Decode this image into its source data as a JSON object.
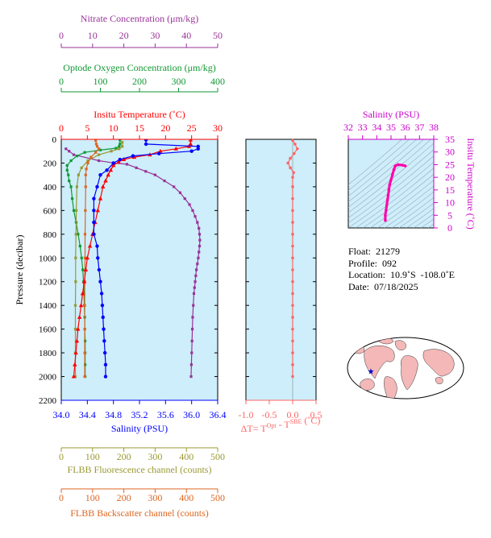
{
  "chart_data": [
    {
      "type": "line",
      "axes": {
        "pressure": {
          "label": "Pressure (decibar)",
          "range": [
            0,
            2200
          ],
          "ticks": [
            0,
            200,
            400,
            600,
            800,
            1000,
            1200,
            1400,
            1600,
            1800,
            2000,
            2200
          ],
          "reversed": true
        },
        "nitrate": {
          "label": "Nitrate Concentration (μm/kg)",
          "range": [
            0,
            50
          ],
          "ticks": [
            0,
            10,
            20,
            30,
            40,
            50
          ],
          "color": "#993399"
        },
        "oxygen": {
          "label": "Optode Oxygen Concentration (μm/kg)",
          "range": [
            0,
            400
          ],
          "ticks": [
            0,
            100,
            200,
            300,
            400
          ],
          "color": "#119933"
        },
        "temperature": {
          "label": "Insitu Temperature (˚C)",
          "range": [
            0,
            30
          ],
          "ticks": [
            0,
            5,
            10,
            15,
            20,
            25,
            30
          ],
          "color": "#ff0000"
        },
        "salinity": {
          "label": "Salinity (PSU)",
          "range": [
            34.0,
            36.4
          ],
          "ticks": [
            "34.0",
            "34.4",
            "34.8",
            "35.2",
            "35.6",
            "36.0",
            "36.4"
          ],
          "color": "#0000ff"
        },
        "fluorescence": {
          "label": "FLBB Fluorescence channel (counts)",
          "range": [
            0,
            500
          ],
          "ticks": [
            0,
            100,
            200,
            300,
            400,
            500
          ],
          "color": "#999933"
        },
        "backscatter": {
          "label": "FLBB Backscatter channel (counts)",
          "range": [
            0,
            500
          ],
          "ticks": [
            0,
            100,
            200,
            300,
            400,
            500
          ],
          "color": "#dd6622"
        }
      },
      "series": [
        {
          "variable": "nitrate",
          "color": "#993399",
          "points": [
            [
              1.5,
              80
            ],
            [
              2.5,
              100
            ],
            [
              4,
              130
            ],
            [
              12,
              180
            ],
            [
              17,
              200
            ],
            [
              21,
              210
            ],
            [
              24,
              240
            ],
            [
              27,
              270
            ],
            [
              30,
              300
            ],
            [
              33,
              350
            ],
            [
              36,
              400
            ],
            [
              38,
              450
            ],
            [
              39.5,
              500
            ],
            [
              41,
              550
            ],
            [
              42,
              600
            ],
            [
              42.8,
              650
            ],
            [
              43.5,
              700
            ],
            [
              44,
              750
            ],
            [
              44.2,
              800
            ],
            [
              44.3,
              850
            ],
            [
              44.2,
              900
            ],
            [
              44,
              950
            ],
            [
              43.8,
              1000
            ],
            [
              43.5,
              1050
            ],
            [
              43.2,
              1100
            ],
            [
              43,
              1150
            ],
            [
              42.8,
              1200
            ],
            [
              42.6,
              1250
            ],
            [
              42.4,
              1300
            ],
            [
              42.2,
              1400
            ],
            [
              42,
              1500
            ],
            [
              41.9,
              1600
            ],
            [
              41.8,
              1700
            ],
            [
              41.7,
              1800
            ],
            [
              41.6,
              1900
            ],
            [
              41.5,
              2000
            ]
          ]
        },
        {
          "variable": "oxygen",
          "color": "#119933",
          "points": [
            [
              150,
              5
            ],
            [
              150,
              40
            ],
            [
              148,
              60
            ],
            [
              140,
              75
            ],
            [
              100,
              90
            ],
            [
              60,
              110
            ],
            [
              40,
              140
            ],
            [
              25,
              180
            ],
            [
              15,
              220
            ],
            [
              15,
              260
            ],
            [
              18,
              300
            ],
            [
              20,
              350
            ],
            [
              25,
              400
            ],
            [
              28,
              500
            ],
            [
              32,
              600
            ],
            [
              38,
              700
            ],
            [
              43,
              800
            ],
            [
              48,
              900
            ],
            [
              52,
              1000
            ],
            [
              55,
              1100
            ],
            [
              57,
              1200
            ],
            [
              58,
              1300
            ],
            [
              59,
              1400
            ],
            [
              60,
              1500
            ],
            [
              60,
              1600
            ],
            [
              61,
              1700
            ],
            [
              61,
              1800
            ],
            [
              61,
              1900
            ],
            [
              61,
              2000
            ]
          ]
        },
        {
          "variable": "fluorescence",
          "color": "#999933",
          "points": [
            [
              195,
              25
            ],
            [
              195,
              60
            ],
            [
              185,
              80
            ],
            [
              160,
              100
            ],
            [
              120,
              130
            ],
            [
              85,
              180
            ],
            [
              65,
              240
            ],
            [
              55,
              300
            ],
            [
              50,
              400
            ],
            [
              48,
              600
            ],
            [
              47,
              800
            ],
            [
              46,
              1000
            ],
            [
              46,
              1200
            ],
            [
              45,
              1400
            ],
            [
              45,
              1600
            ],
            [
              45,
              1800
            ],
            [
              45,
              2000
            ]
          ]
        },
        {
          "variable": "backscatter",
          "color": "#dd6622",
          "points": [
            [
              110,
              10
            ],
            [
              112,
              40
            ],
            [
              115,
              60
            ],
            [
              120,
              80
            ],
            [
              110,
              110
            ],
            [
              95,
              150
            ],
            [
              85,
              200
            ],
            [
              80,
              250
            ],
            [
              78,
              300
            ],
            [
              78,
              400
            ],
            [
              77,
              600
            ],
            [
              76,
              800
            ],
            [
              76,
              1000
            ],
            [
              75,
              1200
            ],
            [
              75,
              1400
            ],
            [
              75,
              1600
            ],
            [
              75,
              1800
            ],
            [
              75,
              2000
            ]
          ]
        },
        {
          "variable": "temperature",
          "color": "#ff0000",
          "points": [
            [
              24.8,
              5
            ],
            [
              24.8,
              40
            ],
            [
              24.5,
              60
            ],
            [
              22,
              80
            ],
            [
              19,
              100
            ],
            [
              17,
              130
            ],
            [
              14,
              150
            ],
            [
              12,
              170
            ],
            [
              11,
              190
            ],
            [
              10,
              220
            ],
            [
              9.5,
              260
            ],
            [
              9,
              300
            ],
            [
              8.5,
              350
            ],
            [
              8,
              400
            ],
            [
              7.5,
              500
            ],
            [
              7,
              600
            ],
            [
              6.5,
              700
            ],
            [
              6,
              800
            ],
            [
              5.5,
              900
            ],
            [
              5,
              1000
            ],
            [
              4.7,
              1100
            ],
            [
              4.4,
              1200
            ],
            [
              4.1,
              1300
            ],
            [
              3.8,
              1400
            ],
            [
              3.5,
              1500
            ],
            [
              3.2,
              1600
            ],
            [
              3,
              1700
            ],
            [
              2.8,
              1800
            ],
            [
              2.6,
              1900
            ],
            [
              2.4,
              2000
            ]
          ]
        },
        {
          "variable": "salinity",
          "color": "#0000ff",
          "points": [
            [
              35.3,
              5
            ],
            [
              35.3,
              40
            ],
            [
              36.1,
              60
            ],
            [
              36.1,
              80
            ],
            [
              36.0,
              100
            ],
            [
              35.5,
              120
            ],
            [
              35.1,
              140
            ],
            [
              34.9,
              170
            ],
            [
              34.8,
              200
            ],
            [
              34.7,
              260
            ],
            [
              34.6,
              300
            ],
            [
              34.55,
              400
            ],
            [
              34.5,
              500
            ],
            [
              34.5,
              600
            ],
            [
              34.5,
              700
            ],
            [
              34.5,
              800
            ],
            [
              34.55,
              900
            ],
            [
              34.56,
              1000
            ],
            [
              34.58,
              1100
            ],
            [
              34.6,
              1200
            ],
            [
              34.62,
              1300
            ],
            [
              34.63,
              1400
            ],
            [
              34.64,
              1500
            ],
            [
              34.65,
              1600
            ],
            [
              34.66,
              1700
            ],
            [
              34.67,
              1800
            ],
            [
              34.68,
              1900
            ],
            [
              34.68,
              2000
            ]
          ]
        }
      ]
    },
    {
      "type": "scatter",
      "xlabel": "ΔT= T^Opt - T^SBE (˚C)",
      "xlabel_parts": {
        "prefix": "ΔT= T",
        "sup1": "Opt",
        "mid": " - T",
        "sup2": "SBE",
        "suffix": " (˚C)"
      },
      "xlim": [
        -1.0,
        0.5
      ],
      "xticks": [
        "-1.0",
        "-0.5",
        "0.0",
        "0.5"
      ],
      "ylim": [
        0,
        2200
      ],
      "color": "#ff6666",
      "points": [
        [
          0.0,
          10
        ],
        [
          0.05,
          40
        ],
        [
          0.1,
          80
        ],
        [
          0.03,
          120
        ],
        [
          -0.05,
          160
        ],
        [
          -0.1,
          200
        ],
        [
          -0.05,
          240
        ],
        [
          0.02,
          280
        ],
        [
          0.0,
          320
        ],
        [
          0.0,
          400
        ],
        [
          0.0,
          500
        ],
        [
          0.0,
          600
        ],
        [
          0.0,
          700
        ],
        [
          0.0,
          800
        ],
        [
          0.0,
          900
        ],
        [
          0.0,
          1000
        ],
        [
          0.0,
          1100
        ],
        [
          0.0,
          1200
        ],
        [
          0.0,
          1300
        ],
        [
          0.0,
          1400
        ],
        [
          0.0,
          1500
        ],
        [
          0.0,
          1600
        ],
        [
          0.0,
          1700
        ],
        [
          0.0,
          1800
        ],
        [
          0.0,
          1900
        ],
        [
          0.0,
          2000
        ]
      ]
    },
    {
      "type": "scatter",
      "title": "Salinity (PSU)",
      "ylabel": "Insitu Temperature (˚C)",
      "xlim": [
        32,
        38
      ],
      "xticks": [
        32,
        33,
        34,
        35,
        36,
        37,
        38
      ],
      "ylim": [
        0,
        35
      ],
      "yticks": [
        0,
        5,
        10,
        15,
        20,
        25,
        30,
        35
      ],
      "color": "#ff00aa",
      "points": [
        [
          34.6,
          3
        ],
        [
          34.6,
          5
        ],
        [
          34.65,
          7
        ],
        [
          34.7,
          9
        ],
        [
          34.75,
          11
        ],
        [
          34.8,
          13
        ],
        [
          34.85,
          15
        ],
        [
          34.9,
          17
        ],
        [
          35.0,
          19
        ],
        [
          35.1,
          21
        ],
        [
          35.2,
          23
        ],
        [
          35.3,
          24.5
        ],
        [
          35.5,
          25
        ],
        [
          35.8,
          24.8
        ],
        [
          36.0,
          24.5
        ]
      ]
    }
  ],
  "info": {
    "float": "Float:  21279",
    "profile": "Profile:  092",
    "location": "Location:  10.9˚S  -108.0˚E",
    "date": "Date:  07/18/2025"
  },
  "map": {
    "marker_lon": -108.0,
    "marker_lat": -10.9,
    "marker_color": "#0000cc",
    "land_color": "#f4b8b8",
    "ocean_color": "#ffffff"
  }
}
